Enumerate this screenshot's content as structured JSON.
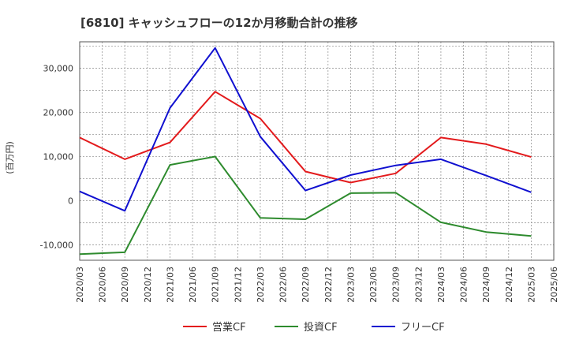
{
  "chart_data": {
    "type": "line",
    "title": "[6810]  キャッシュフローの12か月移動合計の推移",
    "ylabel": "(百万円)",
    "xlabel": "",
    "ylim": [
      -13500,
      36000
    ],
    "yticks": [
      -10000,
      0,
      10000,
      20000,
      30000
    ],
    "ytick_labels": [
      "-10,000",
      "0",
      "10,000",
      "20,000",
      "30,000"
    ],
    "x_labels": [
      "2020/03",
      "2020/06",
      "2020/09",
      "2020/12",
      "2021/03",
      "2021/06",
      "2021/09",
      "2021/12",
      "2022/03",
      "2022/06",
      "2022/09",
      "2022/12",
      "2023/03",
      "2023/06",
      "2023/09",
      "2023/12",
      "2024/03",
      "2024/06",
      "2024/09",
      "2024/12",
      "2025/03",
      "2025/06"
    ],
    "grid": true,
    "legend_position": "bottom",
    "series": [
      {
        "name": "営業CF",
        "color": "#e31a1c",
        "points": [
          {
            "x": "2020/03",
            "y": 14300
          },
          {
            "x": "2020/09",
            "y": 9400
          },
          {
            "x": "2021/03",
            "y": 13200
          },
          {
            "x": "2021/09",
            "y": 24700
          },
          {
            "x": "2022/03",
            "y": 18600
          },
          {
            "x": "2022/09",
            "y": 6600
          },
          {
            "x": "2023/03",
            "y": 4100
          },
          {
            "x": "2023/09",
            "y": 6200
          },
          {
            "x": "2024/03",
            "y": 14300
          },
          {
            "x": "2024/09",
            "y": 12800
          },
          {
            "x": "2025/03",
            "y": 9900
          }
        ]
      },
      {
        "name": "投資CF",
        "color": "#2e8b2e",
        "points": [
          {
            "x": "2020/03",
            "y": -12100
          },
          {
            "x": "2020/09",
            "y": -11700
          },
          {
            "x": "2021/03",
            "y": 8100
          },
          {
            "x": "2021/09",
            "y": 10000
          },
          {
            "x": "2022/03",
            "y": -3900
          },
          {
            "x": "2022/09",
            "y": -4200
          },
          {
            "x": "2023/03",
            "y": 1700
          },
          {
            "x": "2023/09",
            "y": 1800
          },
          {
            "x": "2024/03",
            "y": -4900
          },
          {
            "x": "2024/09",
            "y": -7100
          },
          {
            "x": "2025/03",
            "y": -8000
          }
        ]
      },
      {
        "name": "フリーCF",
        "color": "#1010d0",
        "points": [
          {
            "x": "2020/03",
            "y": 2100
          },
          {
            "x": "2020/09",
            "y": -2300
          },
          {
            "x": "2021/03",
            "y": 21000
          },
          {
            "x": "2021/09",
            "y": 34600
          },
          {
            "x": "2022/03",
            "y": 14500
          },
          {
            "x": "2022/09",
            "y": 2300
          },
          {
            "x": "2023/03",
            "y": 5800
          },
          {
            "x": "2023/09",
            "y": 8000
          },
          {
            "x": "2024/03",
            "y": 9400
          },
          {
            "x": "2024/09",
            "y": 5700
          },
          {
            "x": "2025/03",
            "y": 1900
          }
        ]
      }
    ]
  }
}
